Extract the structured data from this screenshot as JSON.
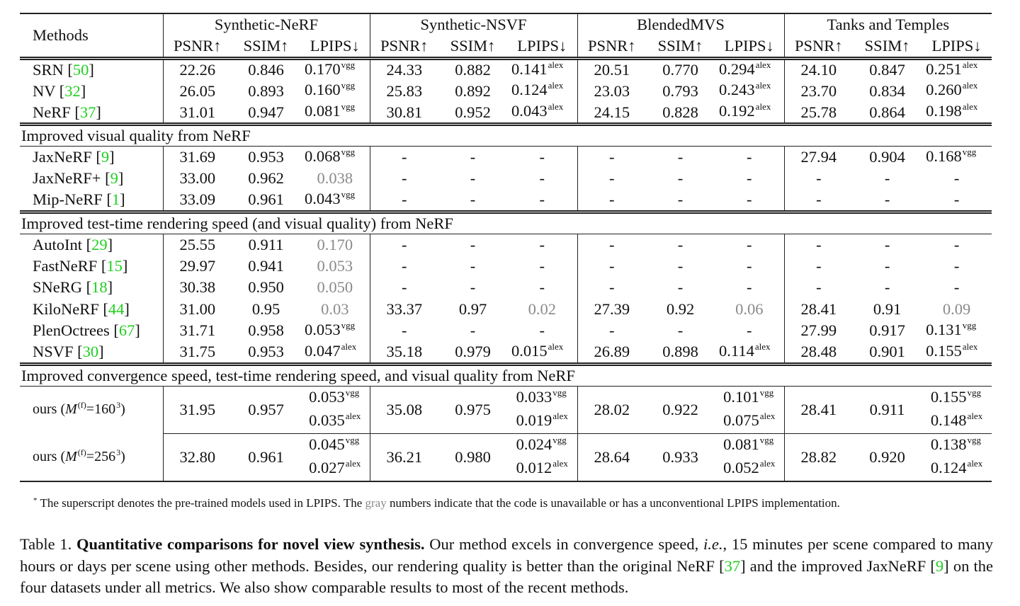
{
  "header": {
    "methods_label": "Methods",
    "datasets": [
      "Synthetic-NeRF",
      "Synthetic-NSVF",
      "BlendedMVS",
      "Tanks and Temples"
    ],
    "metrics": [
      "PSNR↑",
      "SSIM↑",
      "LPIPS↓"
    ]
  },
  "sections": [
    {
      "title": "",
      "rows": [
        {
          "method": "SRN",
          "ref": "50",
          "cells": [
            [
              "22.26"
            ],
            [
              "0.846"
            ],
            [
              "0.170",
              "vgg"
            ],
            [
              "24.33"
            ],
            [
              "0.882"
            ],
            [
              "0.141",
              "alex"
            ],
            [
              "20.51"
            ],
            [
              "0.770"
            ],
            [
              "0.294",
              "alex"
            ],
            [
              "24.10"
            ],
            [
              "0.847"
            ],
            [
              "0.251",
              "alex"
            ]
          ]
        },
        {
          "method": "NV",
          "ref": "32",
          "cells": [
            [
              "26.05"
            ],
            [
              "0.893"
            ],
            [
              "0.160",
              "vgg"
            ],
            [
              "25.83"
            ],
            [
              "0.892"
            ],
            [
              "0.124",
              "alex"
            ],
            [
              "23.03"
            ],
            [
              "0.793"
            ],
            [
              "0.243",
              "alex"
            ],
            [
              "23.70"
            ],
            [
              "0.834"
            ],
            [
              "0.260",
              "alex"
            ]
          ]
        },
        {
          "method": "NeRF",
          "ref": "37",
          "cells": [
            [
              "31.01"
            ],
            [
              "0.947"
            ],
            [
              "0.081",
              "vgg"
            ],
            [
              "30.81"
            ],
            [
              "0.952"
            ],
            [
              "0.043",
              "alex"
            ],
            [
              "24.15"
            ],
            [
              "0.828"
            ],
            [
              "0.192",
              "alex"
            ],
            [
              "25.78"
            ],
            [
              "0.864"
            ],
            [
              "0.198",
              "alex"
            ]
          ]
        }
      ]
    },
    {
      "title": "Improved visual quality from NeRF",
      "rows": [
        {
          "method": "JaxNeRF",
          "ref": "9",
          "cells": [
            [
              "31.69"
            ],
            [
              "0.953"
            ],
            [
              "0.068",
              "vgg"
            ],
            [
              "-"
            ],
            [
              "-"
            ],
            [
              "-"
            ],
            [
              "-"
            ],
            [
              "-"
            ],
            [
              "-"
            ],
            [
              "27.94"
            ],
            [
              "0.904"
            ],
            [
              "0.168",
              "vgg"
            ]
          ]
        },
        {
          "method": "JaxNeRF+",
          "ref": "9",
          "cells": [
            [
              "33.00"
            ],
            [
              "0.962"
            ],
            [
              "0.038",
              "",
              "gray"
            ],
            [
              "-"
            ],
            [
              "-"
            ],
            [
              "-"
            ],
            [
              "-"
            ],
            [
              "-"
            ],
            [
              "-"
            ],
            [
              "-"
            ],
            [
              "-"
            ],
            [
              "-"
            ]
          ]
        },
        {
          "method": "Mip-NeRF",
          "ref": "1",
          "cells": [
            [
              "33.09"
            ],
            [
              "0.961"
            ],
            [
              "0.043",
              "vgg"
            ],
            [
              "-"
            ],
            [
              "-"
            ],
            [
              "-"
            ],
            [
              "-"
            ],
            [
              "-"
            ],
            [
              "-"
            ],
            [
              "-"
            ],
            [
              "-"
            ],
            [
              "-"
            ]
          ]
        }
      ]
    },
    {
      "title": "Improved test-time rendering speed (and visual quality) from NeRF",
      "rows": [
        {
          "method": "AutoInt",
          "ref": "29",
          "cells": [
            [
              "25.55"
            ],
            [
              "0.911"
            ],
            [
              "0.170",
              "",
              "gray"
            ],
            [
              "-"
            ],
            [
              "-"
            ],
            [
              "-"
            ],
            [
              "-"
            ],
            [
              "-"
            ],
            [
              "-"
            ],
            [
              "-"
            ],
            [
              "-"
            ],
            [
              "-"
            ]
          ]
        },
        {
          "method": "FastNeRF",
          "ref": "15",
          "cells": [
            [
              "29.97"
            ],
            [
              "0.941"
            ],
            [
              "0.053",
              "",
              "gray"
            ],
            [
              "-"
            ],
            [
              "-"
            ],
            [
              "-"
            ],
            [
              "-"
            ],
            [
              "-"
            ],
            [
              "-"
            ],
            [
              "-"
            ],
            [
              "-"
            ],
            [
              "-"
            ]
          ]
        },
        {
          "method": "SNeRG",
          "ref": "18",
          "cells": [
            [
              "30.38"
            ],
            [
              "0.950"
            ],
            [
              "0.050",
              "",
              "gray"
            ],
            [
              "-"
            ],
            [
              "-"
            ],
            [
              "-"
            ],
            [
              "-"
            ],
            [
              "-"
            ],
            [
              "-"
            ],
            [
              "-"
            ],
            [
              "-"
            ],
            [
              "-"
            ]
          ]
        },
        {
          "method": "KiloNeRF",
          "ref": "44",
          "cells": [
            [
              "31.00"
            ],
            [
              "0.95"
            ],
            [
              "0.03",
              "",
              "gray"
            ],
            [
              "33.37"
            ],
            [
              "0.97"
            ],
            [
              "0.02",
              "",
              "gray"
            ],
            [
              "27.39"
            ],
            [
              "0.92"
            ],
            [
              "0.06",
              "",
              "gray"
            ],
            [
              "28.41"
            ],
            [
              "0.91"
            ],
            [
              "0.09",
              "",
              "gray"
            ]
          ]
        },
        {
          "method": "PlenOctrees",
          "ref": "67",
          "cells": [
            [
              "31.71"
            ],
            [
              "0.958"
            ],
            [
              "0.053",
              "vgg"
            ],
            [
              "-"
            ],
            [
              "-"
            ],
            [
              "-"
            ],
            [
              "-"
            ],
            [
              "-"
            ],
            [
              "-"
            ],
            [
              "27.99"
            ],
            [
              "0.917"
            ],
            [
              "0.131",
              "vgg"
            ]
          ]
        },
        {
          "method": "NSVF",
          "ref": "30",
          "cells": [
            [
              "31.75"
            ],
            [
              "0.953"
            ],
            [
              "0.047",
              "alex"
            ],
            [
              "35.18"
            ],
            [
              "0.979"
            ],
            [
              "0.015",
              "alex"
            ],
            [
              "26.89"
            ],
            [
              "0.898"
            ],
            [
              "0.114",
              "alex"
            ],
            [
              "28.48"
            ],
            [
              "0.901"
            ],
            [
              "0.155",
              "alex"
            ]
          ]
        }
      ]
    },
    {
      "title": "Improved convergence speed, test-time rendering speed, and visual quality from NeRF",
      "rows": [
        {
          "method": "ours",
          "res": "160",
          "cells": [
            [
              "31.95"
            ],
            [
              "0.957"
            ],
            [
              "0.053",
              "vgg",
              "",
              "0.035",
              "alex"
            ],
            [
              "35.08"
            ],
            [
              "0.975"
            ],
            [
              "0.033",
              "vgg",
              "",
              "0.019",
              "alex"
            ],
            [
              "28.02"
            ],
            [
              "0.922"
            ],
            [
              "0.101",
              "vgg",
              "",
              "0.075",
              "alex"
            ],
            [
              "28.41"
            ],
            [
              "0.911"
            ],
            [
              "0.155",
              "vgg",
              "",
              "0.148",
              "alex"
            ]
          ]
        },
        {
          "method": "ours",
          "res": "256",
          "cells": [
            [
              "32.80"
            ],
            [
              "0.961"
            ],
            [
              "0.045",
              "vgg",
              "",
              "0.027",
              "alex"
            ],
            [
              "36.21"
            ],
            [
              "0.980"
            ],
            [
              "0.024",
              "vgg",
              "",
              "0.012",
              "alex"
            ],
            [
              "28.64"
            ],
            [
              "0.933"
            ],
            [
              "0.081",
              "vgg",
              "",
              "0.052",
              "alex"
            ],
            [
              "28.82"
            ],
            [
              "0.920"
            ],
            [
              "0.138",
              "vgg",
              "",
              "0.124",
              "alex"
            ]
          ]
        }
      ]
    }
  ],
  "ours_label": {
    "symbol": "M",
    "sup": "(f)",
    "exp": "3"
  },
  "footnote": {
    "mark": "*",
    "before": " The superscript denotes the pre-trained models used in LPIPS. The ",
    "gray_word": "gray",
    "after": " numbers indicate that the code is unavailable or has a unconventional LPIPS implementation."
  },
  "caption": {
    "label": "Table 1. ",
    "bold": "Quantitative comparisons for novel view synthesis.",
    "t1": " Our method excels in convergence speed, ",
    "ie": "i.e.",
    "t2": ", 15 minutes per scene compared to many hours or days per scene using other methods. Besides, our rendering quality is better than the original NeRF [",
    "ref1": "37",
    "t3": "] and the improved JaxNeRF [",
    "ref2": "9",
    "t4": "] on the four datasets under all metrics. We also show comparable results to most of the recent methods."
  },
  "colors": {
    "reference": "#1fcf1f",
    "gray_values": "#8a8a8a"
  }
}
